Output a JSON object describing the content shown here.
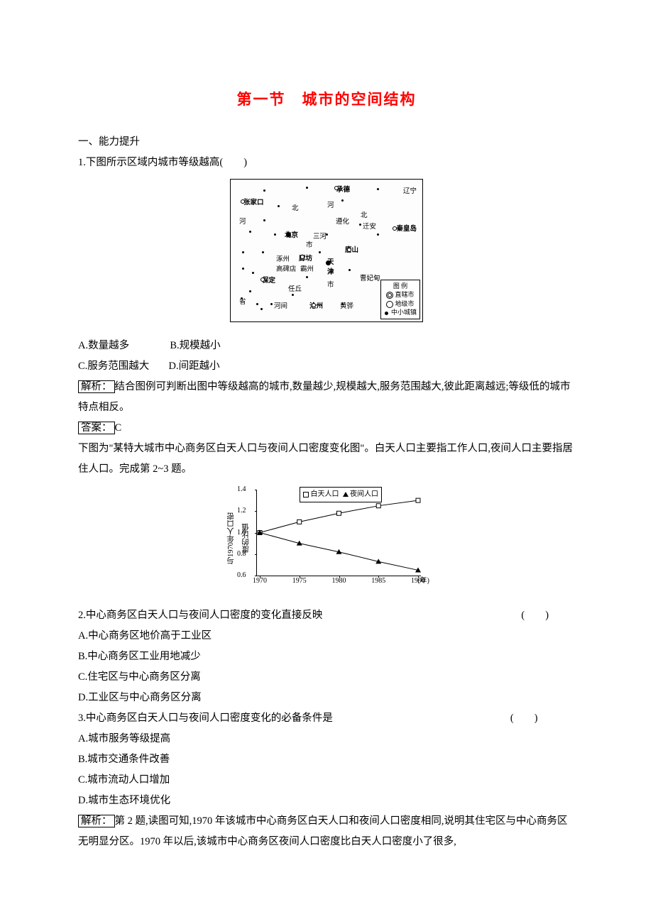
{
  "title": "第一节　城市的空间结构",
  "section1": "一、能力提升",
  "q1": {
    "stem": "1.下图所示区域内城市等级越高(　　)",
    "options": {
      "A": "A.数量越多",
      "B": "B.规模越小",
      "C": "C.服务范围越大",
      "D": "D.间距越小"
    },
    "analysis_label": "解析：",
    "analysis": "结合图例可判断出图中等级越高的城市,数量越少,规模越大,服务范围越大,彼此距离越远;等级低的城市特点相反。",
    "answer_label": "答案：",
    "answer": "C"
  },
  "map": {
    "legend_title": "图 例",
    "legend_items": [
      "直辖市",
      "地级市",
      "中小城镇"
    ],
    "labels": [
      "承德",
      "辽宁",
      "张家口",
      "河",
      "北",
      "河",
      "北",
      "遵化",
      "迁安",
      "秦皇岛",
      "北京",
      "三河",
      "唐山",
      "市",
      "涿州",
      "廊坊",
      "天",
      "高碑店",
      "霸州",
      "津",
      "保定",
      "曹妃甸",
      "任丘",
      "市",
      "河间",
      "沧州",
      "黄骅",
      "省"
    ]
  },
  "intro23": "下图为\"某特大城市中心商务区白天人口与夜间人口密度变化图\"。白天人口主要指工作人口,夜间人口主要指居住人口。完成第 2~3 题。",
  "chart": {
    "ylabel": "与1970年人口密度的比值",
    "legend": {
      "day": "白天人口",
      "night": "夜间人口"
    },
    "xunit": "(年)",
    "yaxis": {
      "min": 0.6,
      "max": 1.4,
      "ticks": [
        0.6,
        0.8,
        1.0,
        1.2,
        1.4
      ]
    },
    "xaxis": {
      "ticks": [
        1970,
        1975,
        1980,
        1985,
        1990
      ]
    },
    "series": {
      "day": {
        "marker": "square",
        "points": [
          [
            1970,
            1.0
          ],
          [
            1975,
            1.1
          ],
          [
            1980,
            1.18
          ],
          [
            1985,
            1.25
          ],
          [
            1990,
            1.3
          ]
        ]
      },
      "night": {
        "marker": "triangle",
        "points": [
          [
            1970,
            1.0
          ],
          [
            1975,
            0.9
          ],
          [
            1980,
            0.82
          ],
          [
            1985,
            0.73
          ],
          [
            1990,
            0.65
          ]
        ]
      }
    },
    "colors": {
      "line": "#000000",
      "background": "#ffffff"
    },
    "line_width": 1
  },
  "q2": {
    "stem": "2.中心商务区白天人口与夜间人口密度的变化直接反映",
    "blank": "(　　)",
    "options": {
      "A": "A.中心商务区地价高于工业区",
      "B": "B.中心商务区工业用地减少",
      "C": "C.住宅区与中心商务区分离",
      "D": "D.工业区与中心商务区分离"
    }
  },
  "q3": {
    "stem": "3.中心商务区白天人口与夜间人口密度变化的必备条件是",
    "blank": "(　　)",
    "options": {
      "A": "A.城市服务等级提高",
      "B": "B.城市交通条件改善",
      "C": "C.城市流动人口增加",
      "D": "D.城市生态环境优化"
    }
  },
  "analysis23_label": "解析：",
  "analysis23": "第 2 题,读图可知,1970 年该城市中心商务区白天人口和夜间人口密度相同,说明其住宅区与中心商务区无明显分区。1970 年以后,该城市中心商务区夜间人口密度比白天人口密度小了很多,"
}
